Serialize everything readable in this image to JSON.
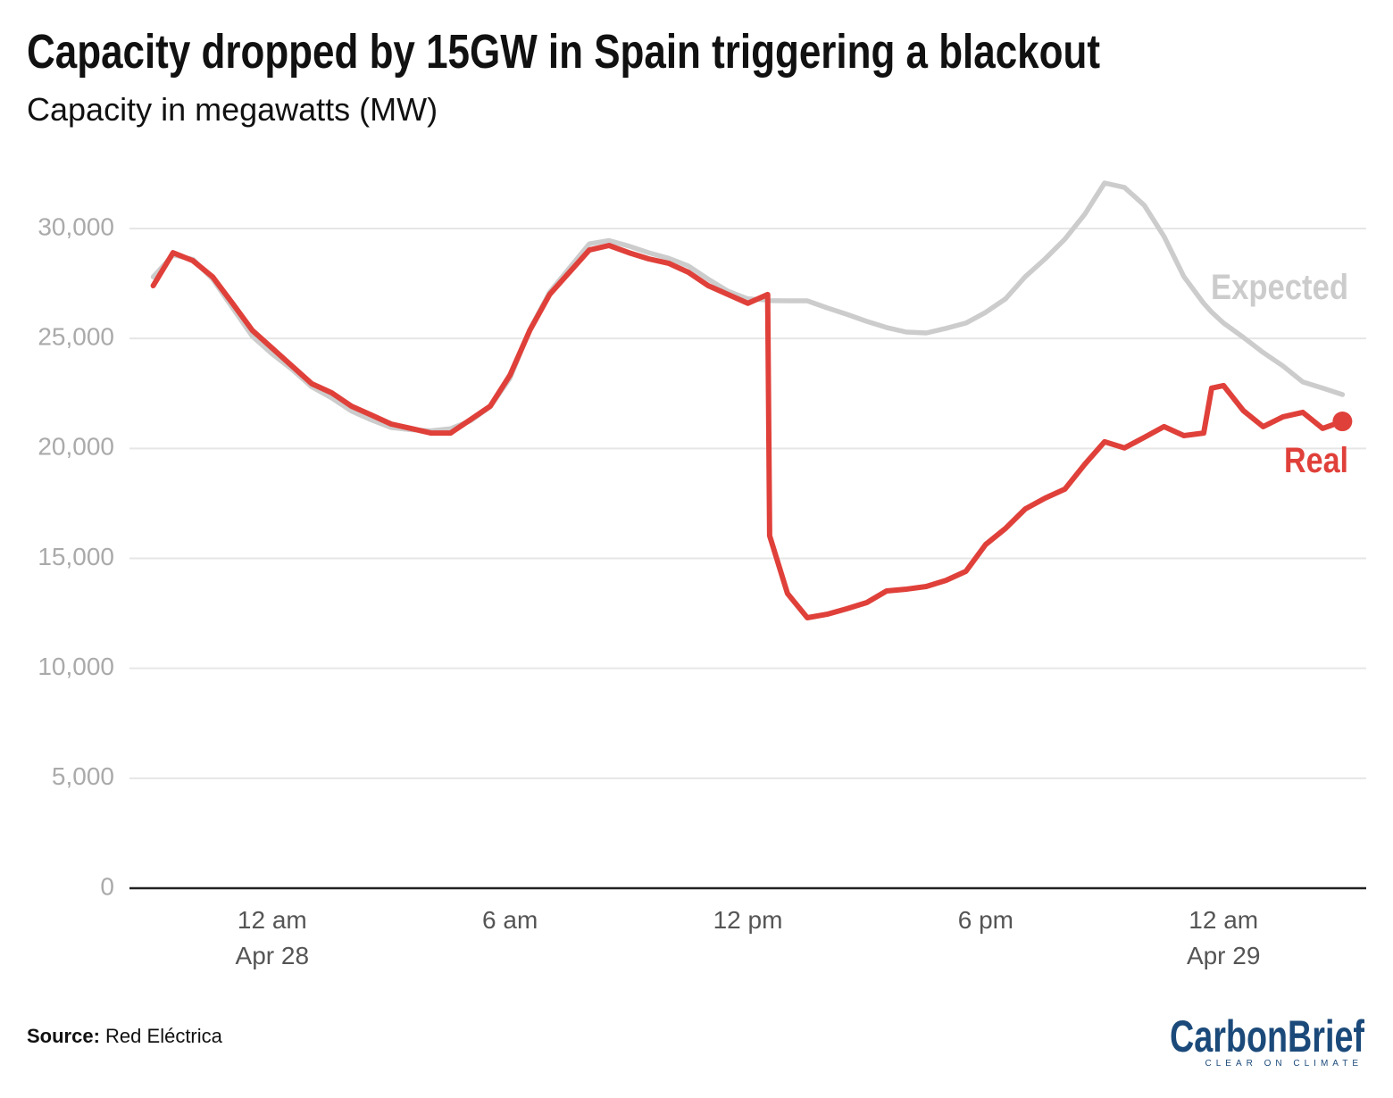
{
  "chart_data": {
    "type": "line",
    "title": "Capacity dropped by 15GW in Spain triggering a blackout",
    "subtitle": "Capacity in megawatts (MW)",
    "source_label": "Source:",
    "source": "Red Eléctrica",
    "logo": "CarbonBrief",
    "logo_tagline": "CLEAR ON CLIMATE",
    "x": [
      -3,
      -2.5,
      -2,
      -1.5,
      -1,
      -0.5,
      0,
      0.5,
      1,
      1.5,
      2,
      2.5,
      3,
      3.5,
      4,
      4.5,
      5,
      5.5,
      6,
      6.5,
      7,
      7.5,
      8,
      8.5,
      9,
      9.5,
      10,
      10.5,
      11,
      11.5,
      12,
      12.5,
      12.55,
      13,
      13.5,
      14,
      14.5,
      15,
      15.5,
      16,
      16.5,
      17,
      17.5,
      18,
      18.5,
      19,
      19.5,
      20,
      20.5,
      21,
      21.5,
      22,
      22.5,
      23,
      23.5,
      23.7,
      24,
      24.5,
      25,
      25.5,
      26,
      26.5,
      27
    ],
    "xlim": [
      -3.6,
      27.6
    ],
    "xticks": [
      {
        "value": 0,
        "label": "12 am\nApr 28"
      },
      {
        "value": 6,
        "label": "6 am"
      },
      {
        "value": 12,
        "label": "12 pm"
      },
      {
        "value": 18,
        "label": "6 pm"
      },
      {
        "value": 24,
        "label": "12 am\nApr 29"
      }
    ],
    "ylim": [
      0,
      32500
    ],
    "yticks": [
      0,
      {
        "value": 5000,
        "label": "5,000"
      },
      {
        "value": 10000,
        "label": "10,000"
      },
      {
        "value": 15000,
        "label": "15,000"
      },
      {
        "value": 20000,
        "label": "20,000"
      },
      {
        "value": 25000,
        "label": "25,000"
      },
      {
        "value": 30000,
        "label": "30,000"
      }
    ],
    "grid": true,
    "series": [
      {
        "name": "Expected",
        "color": "#cccccc",
        "values": [
          27800,
          28800,
          28600,
          27700,
          26400,
          25100,
          24300,
          23600,
          22800,
          22300,
          21700,
          21300,
          20950,
          20850,
          20800,
          20900,
          21250,
          21900,
          23200,
          25400,
          27100,
          28200,
          29300,
          29450,
          29200,
          28900,
          28650,
          28300,
          27700,
          27150,
          26800,
          26750,
          26720,
          26710,
          26710,
          26390,
          26100,
          25780,
          25500,
          25290,
          25250,
          25460,
          25700,
          26190,
          26800,
          27810,
          28620,
          29520,
          30650,
          32070,
          31870,
          31060,
          29640,
          27810,
          26600,
          26200,
          25700,
          25050,
          24360,
          23750,
          23020,
          22740,
          22450
        ]
      },
      {
        "name": "Real",
        "color": "#e0403a",
        "values": [
          27400,
          28900,
          28540,
          27800,
          26600,
          25370,
          24560,
          23750,
          22940,
          22530,
          21920,
          21520,
          21110,
          20910,
          20700,
          20700,
          21310,
          21920,
          23340,
          25370,
          27000,
          28010,
          29020,
          29230,
          28900,
          28620,
          28420,
          28010,
          27400,
          27000,
          26600,
          27000,
          16030,
          13400,
          12300,
          12460,
          12710,
          12990,
          13520,
          13600,
          13720,
          14000,
          14410,
          15630,
          16360,
          17250,
          17740,
          18150,
          19280,
          20300,
          20020,
          20500,
          20990,
          20580,
          20700,
          22740,
          22860,
          21720,
          20990,
          21440,
          21640,
          20910,
          21230
        ]
      }
    ]
  }
}
